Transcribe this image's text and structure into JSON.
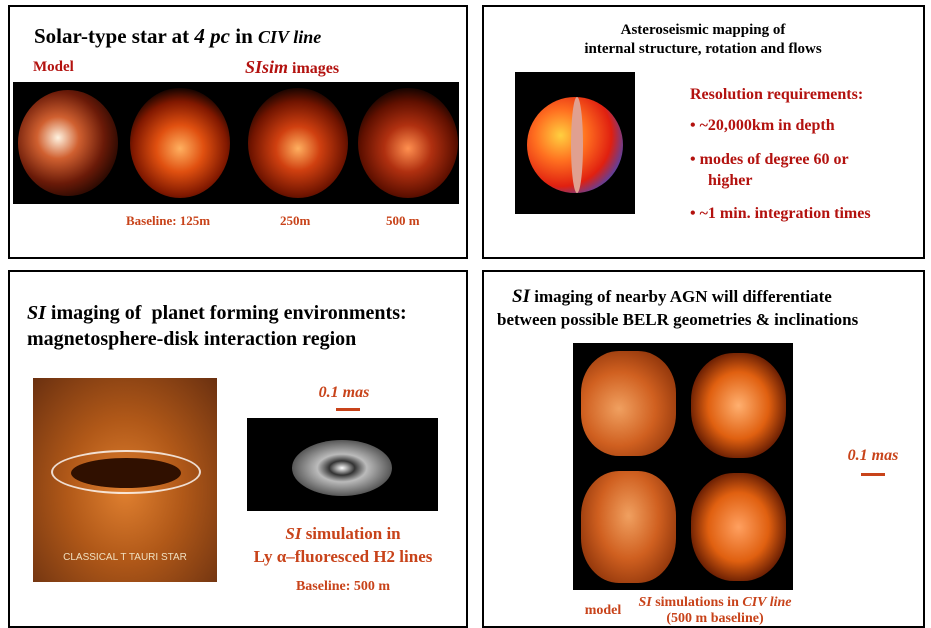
{
  "top_left": {
    "title": {
      "a": "Solar-type star at",
      "b": "4 pc",
      "c": "in",
      "d": "CIV line"
    },
    "model_label": "Model",
    "sim_label": {
      "a": "SIsim",
      "b": "images"
    },
    "baselines": [
      "Baseline:  125m",
      "250m",
      "500 m"
    ]
  },
  "top_right": {
    "title": [
      "Asteroseismic mapping of",
      "internal structure, rotation and flows"
    ],
    "requirements_heading": "Resolution requirements:",
    "bullets": [
      "~20,000km in depth",
      "modes of degree 60 or",
      "higher",
      "~1 min. integration times"
    ]
  },
  "bottom_left": {
    "title": {
      "a": "SI",
      "b": "imaging of  planet forming environments:",
      "c": "magnetosphere-disk interaction region"
    },
    "image_caption": "CLASSICAL T TAURI STAR",
    "scale": "0.1 mas",
    "sim_caption": {
      "a": "SI",
      "b": "simulation in",
      "c": "Ly",
      "d": "α–fluoresced H2 lines"
    },
    "baseline": "Baseline: 500 m"
  },
  "bottom_right": {
    "title": {
      "a": "SI",
      "b": "imaging of nearby AGN will differentiate",
      "c": "between possible BELR geometries & inclinations"
    },
    "scale": "0.1 mas",
    "model_label": "model",
    "sim_caption": {
      "a": "SI",
      "b": "simulations in",
      "c": "CIV line",
      "d": "(500 m baseline)"
    }
  }
}
